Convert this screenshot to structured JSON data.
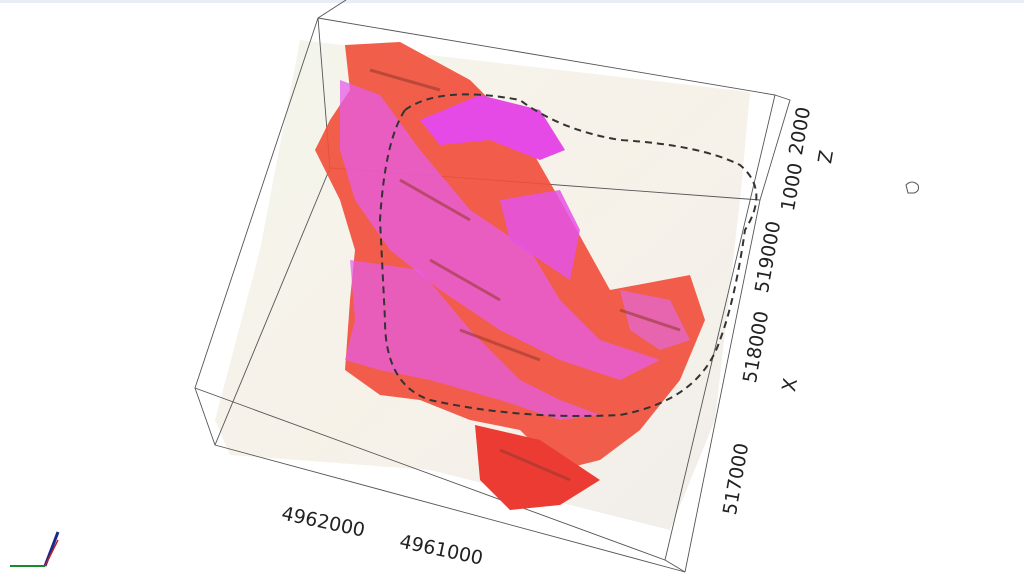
{
  "axes": {
    "z": {
      "title": "Z",
      "ticks": [
        "2000",
        "1000"
      ]
    },
    "x": {
      "title": "X",
      "ticks": [
        "519000",
        "518000",
        "517000"
      ]
    },
    "y": {
      "ticks": [
        "4962000",
        "4961000"
      ]
    }
  }
}
